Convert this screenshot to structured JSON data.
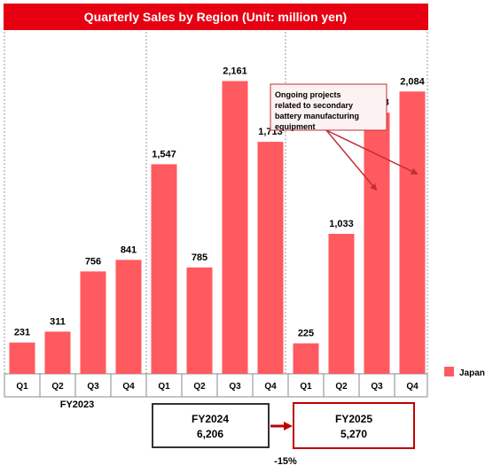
{
  "chart_data": {
    "type": "bar",
    "title": "Quarterly Sales by Region (Unit: million yen)",
    "categories": [
      "Q1",
      "Q2",
      "Q3",
      "Q4",
      "Q1",
      "Q2",
      "Q3",
      "Q4",
      "Q1",
      "Q2",
      "Q3",
      "Q4"
    ],
    "groups": [
      {
        "label": "FY2023",
        "start": 0,
        "end": 3
      },
      {
        "label": "FY2024",
        "start": 4,
        "end": 7
      },
      {
        "label": "FY2025",
        "start": 8,
        "end": 11
      }
    ],
    "series": [
      {
        "name": "Japan",
        "values": [
          231,
          311,
          756,
          841,
          1547,
          785,
          2161,
          1713,
          225,
          1033,
          1928,
          2084
        ],
        "color": "#ff5a5f"
      }
    ],
    "value_labels": [
      "231",
      "311",
      "756",
      "841",
      "1,547",
      "785",
      "2,161",
      "1,713",
      "225",
      "1,033",
      "1,928",
      "2,084"
    ],
    "ylim": [
      0,
      2400
    ],
    "grid": false,
    "legend_position": "right",
    "totals": [
      {
        "fiscal_year": "FY2024",
        "value_label": "6,206",
        "border": "#333333"
      },
      {
        "fiscal_year": "FY2025",
        "value_label": "5,270",
        "border": "#c00000"
      }
    ],
    "change_label": "-15%",
    "annotation": "Ongoing projects related to secondary battery manufacturing equipment",
    "title_bg": "#e60012",
    "annotation_color": "#c0303a"
  }
}
